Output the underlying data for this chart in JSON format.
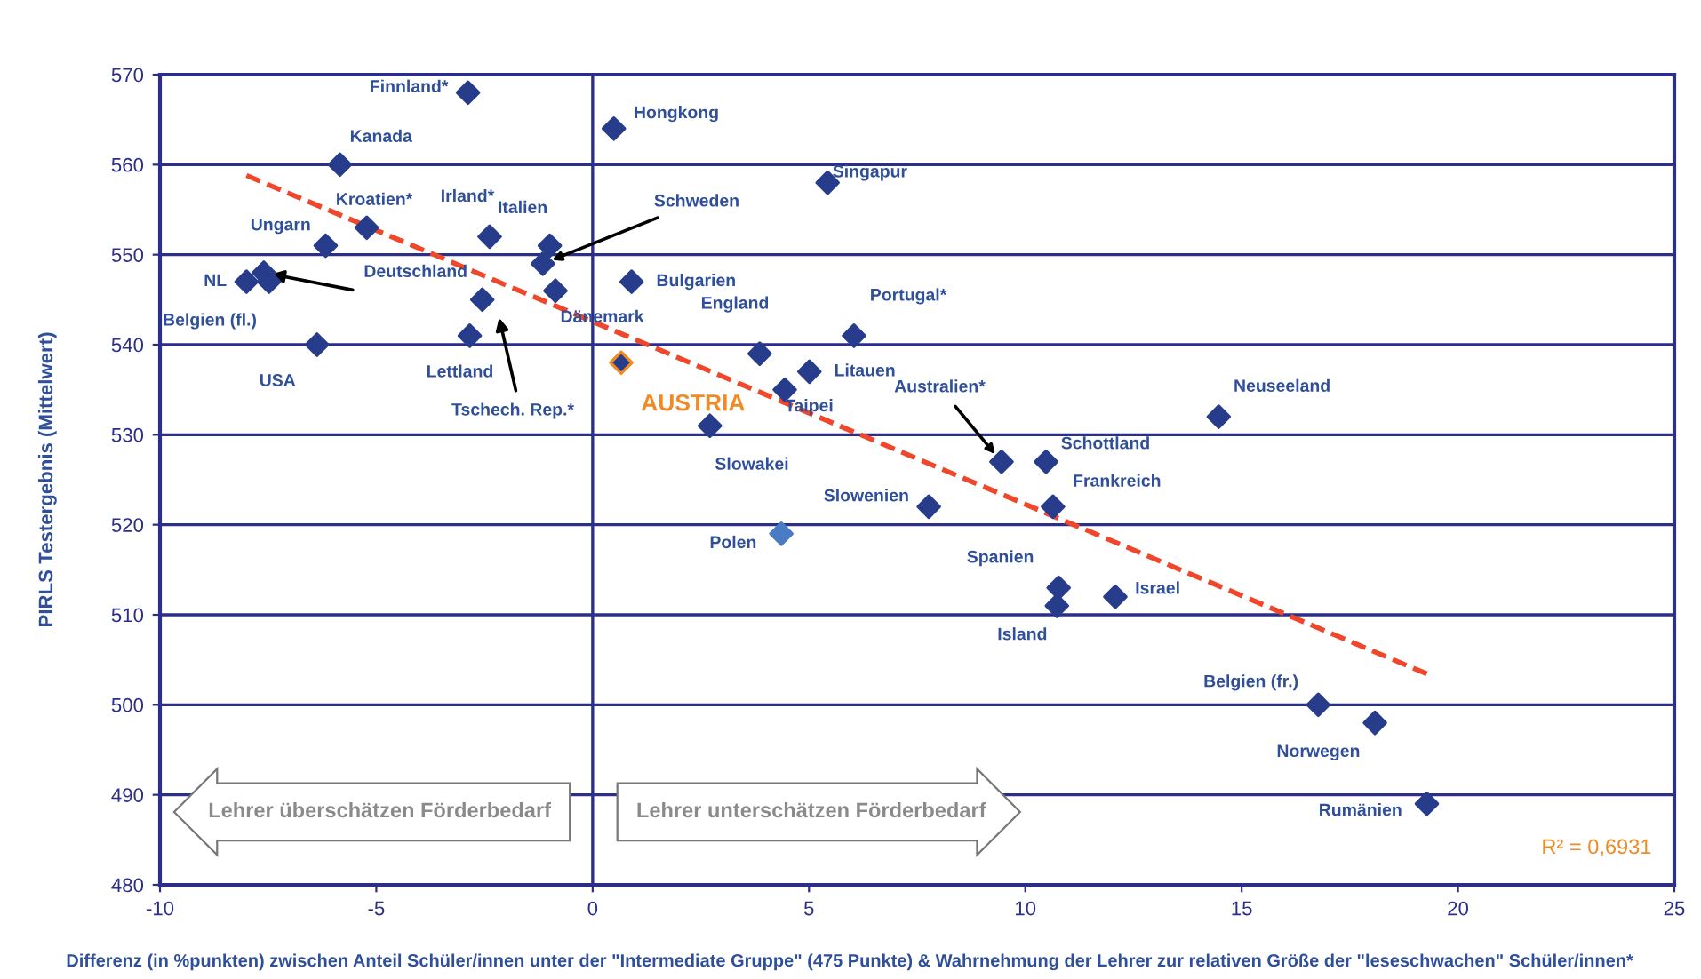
{
  "chart_data": {
    "type": "scatter",
    "xlabel": "Differenz (in %punkten) zwischen Anteil Schüler/innen unter der \"Intermediate Gruppe\" (475 Punkte) & Wahrnehmung der Lehrer zur relativen Größe der \"leseschwachen\" Schüler/innen*",
    "ylabel": "PIRLS Testergebnis (Mittelwert)",
    "xlim": [
      -10,
      25
    ],
    "xticks": [
      -10,
      -5,
      0,
      5,
      10,
      15,
      20,
      25
    ],
    "ylim": [
      480,
      570
    ],
    "yticks": [
      480,
      490,
      500,
      510,
      520,
      530,
      540,
      550,
      560,
      570
    ],
    "grid": "y",
    "legend": false,
    "marker": "diamond",
    "ref_lines": [
      {
        "axis": "x",
        "value": 0,
        "color": "#2b2f8a"
      }
    ],
    "series": [
      {
        "color": "#283c8c",
        "x": [
          -2.88,
          0.49,
          -5.84,
          5.43,
          -5.22,
          -2.38,
          -0.99,
          -6.17,
          -1.15,
          -8.0,
          -7.6,
          -7.48,
          -2.55,
          -0.86,
          0.9,
          -2.84,
          -6.37,
          0.66,
          3.86,
          6.04,
          5.01,
          4.44,
          2.71,
          9.45,
          10.48,
          14.47,
          10.64,
          7.77,
          4.36,
          10.77,
          10.73,
          12.08,
          16.77,
          18.08,
          19.28
        ],
        "values": [
          568,
          564,
          560,
          558,
          553,
          552,
          551,
          551,
          549,
          547,
          548,
          547,
          545,
          546,
          547,
          541,
          540,
          538,
          539,
          541,
          537,
          535,
          531,
          527,
          527,
          532,
          522,
          522,
          519,
          513,
          511,
          512,
          500,
          498,
          489
        ],
        "colors": [
          "#283c8c",
          "#283c8c",
          "#283c8c",
          "#283c8c",
          "#283c8c",
          "#283c8c",
          "#283c8c",
          "#283c8c",
          "#283c8c",
          "#283c8c",
          "#283c8c",
          "#283c8c",
          "#283c8c",
          "#283c8c",
          "#283c8c",
          "#283c8c",
          "#283c8c",
          "#f08a24",
          "#283c8c",
          "#283c8c",
          "#283c8c",
          "#283c8c",
          "#283c8c",
          "#283c8c",
          "#283c8c",
          "#283c8c",
          "#283c8c",
          "#283c8c",
          "#4a7cc4",
          "#283c8c",
          "#283c8c",
          "#283c8c",
          "#283c8c",
          "#283c8c",
          "#283c8c"
        ]
      },
      {
        "type": "line",
        "color": "#f0462a",
        "line_style": "dashed",
        "marker": "none",
        "x": [
          -8.0,
          19.3
        ],
        "values": [
          558.8,
          503.4
        ]
      }
    ],
    "annotations": [
      {
        "text": "Finnland*",
        "x": -2.88,
        "y": 568
      },
      {
        "text": "Hongkong",
        "x": 0.49,
        "y": 564
      },
      {
        "text": "Kanada",
        "x": -5.84,
        "y": 560
      },
      {
        "text": "Singapur",
        "x": 5.43,
        "y": 558
      },
      {
        "text": "Kroatien*",
        "x": -5.22,
        "y": 553
      },
      {
        "text": "Irland*",
        "x": -2.38,
        "y": 552
      },
      {
        "text": "Italien",
        "x": -0.99,
        "y": 551
      },
      {
        "text": "Ungarn",
        "x": -6.17,
        "y": 551
      },
      {
        "text": "Schweden",
        "x": -1.15,
        "y": 549
      },
      {
        "text": "NL",
        "x": -8.0,
        "y": 547
      },
      {
        "text": "Belgien (fl.)",
        "x": -7.48,
        "y": 547
      },
      {
        "text": "Deutschland",
        "x": -2.55,
        "y": 545
      },
      {
        "text": "Dänemark",
        "x": -0.86,
        "y": 546
      },
      {
        "text": "Bulgarien",
        "x": 0.9,
        "y": 547
      },
      {
        "text": "Lettland",
        "x": -2.84,
        "y": 541
      },
      {
        "text": "USA",
        "x": -6.37,
        "y": 540
      },
      {
        "text": "AUSTRIA",
        "x": 0.66,
        "y": 538
      },
      {
        "text": "England",
        "x": 3.86,
        "y": 539
      },
      {
        "text": "Portugal*",
        "x": 6.04,
        "y": 541
      },
      {
        "text": "Litauen",
        "x": 5.01,
        "y": 537
      },
      {
        "text": "Taipei",
        "x": 4.44,
        "y": 535
      },
      {
        "text": "Slowakei",
        "x": 2.71,
        "y": 531
      },
      {
        "text": "Australien*",
        "x": 9.45,
        "y": 527
      },
      {
        "text": "Schottland",
        "x": 10.48,
        "y": 527
      },
      {
        "text": "Neuseeland",
        "x": 14.47,
        "y": 532
      },
      {
        "text": "Frankreich",
        "x": 10.64,
        "y": 522
      },
      {
        "text": "Slowenien",
        "x": 7.77,
        "y": 522
      },
      {
        "text": "Polen",
        "x": 4.36,
        "y": 519
      },
      {
        "text": "Spanien",
        "x": 10.77,
        "y": 513
      },
      {
        "text": "Island",
        "x": 10.73,
        "y": 511
      },
      {
        "text": "Israel",
        "x": 12.08,
        "y": 512
      },
      {
        "text": "Belgien (fr.)",
        "x": 16.77,
        "y": 500
      },
      {
        "text": "Norwegen",
        "x": 18.08,
        "y": 498
      },
      {
        "text": "Rumänien",
        "x": 19.28,
        "y": 489
      },
      "Tschech. Rep.*",
      "Lehrer überschätzen Förderbedarf",
      "Lehrer unterschätzen Förderbedarf",
      "R² = 0,6931"
    ]
  }
}
